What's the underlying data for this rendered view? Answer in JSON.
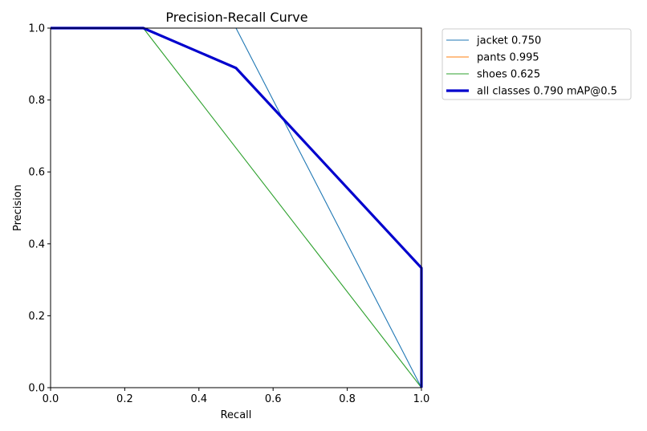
{
  "chart_data": {
    "type": "line",
    "title": "Precision-Recall Curve",
    "xlabel": "Recall",
    "ylabel": "Precision",
    "xlim": [
      0.0,
      1.0
    ],
    "ylim": [
      0.0,
      1.0
    ],
    "xticks": [
      "0.0",
      "0.2",
      "0.4",
      "0.6",
      "0.8",
      "1.0"
    ],
    "yticks": [
      "0.0",
      "0.2",
      "0.4",
      "0.6",
      "0.8",
      "1.0"
    ],
    "grid": false,
    "legend_position": "outside-top-right",
    "series": [
      {
        "name": "jacket",
        "label": "jacket 0.750",
        "color": "#1f77b4",
        "width": "thin",
        "x": [
          0.0,
          0.5,
          1.0
        ],
        "y": [
          1.0,
          1.0,
          0.0
        ]
      },
      {
        "name": "pants",
        "label": "pants 0.995",
        "color": "#ff7f0e",
        "width": "thin",
        "x": [
          0.0,
          1.0,
          1.0
        ],
        "y": [
          1.0,
          1.0,
          0.0
        ]
      },
      {
        "name": "shoes",
        "label": "shoes 0.625",
        "color": "#2ca02c",
        "width": "thin",
        "x": [
          0.0,
          0.25,
          1.0
        ],
        "y": [
          1.0,
          1.0,
          0.0
        ]
      },
      {
        "name": "all-classes",
        "label": "all classes 0.790 mAP@0.5",
        "color": "#0000cd",
        "width": "thick",
        "x": [
          0.0,
          0.25,
          0.5,
          1.0,
          1.0
        ],
        "y": [
          1.0,
          1.0,
          0.889,
          0.333,
          0.0
        ]
      }
    ]
  }
}
